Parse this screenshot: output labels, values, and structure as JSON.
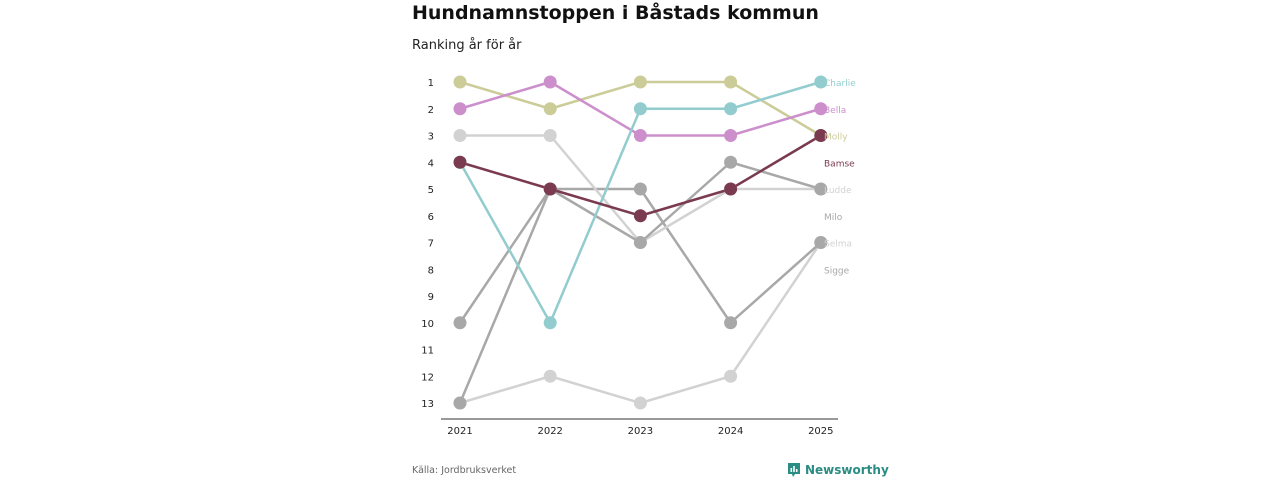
{
  "header": {
    "title": "Hundnamnstoppen i Båstads kommun",
    "subtitle": "Ranking år för år"
  },
  "footer": {
    "source": "Källa: Jordbruksverket",
    "brand": "Newsworthy",
    "brand_color": "#2a8c82"
  },
  "chart_data": {
    "type": "line",
    "subtype": "bump",
    "title": "Hundnamnstoppen i Båstads kommun",
    "subtitle": "Ranking år för år",
    "x": [
      "2021",
      "2022",
      "2023",
      "2024",
      "2025"
    ],
    "y_ticks": [
      1,
      2,
      3,
      4,
      5,
      6,
      7,
      8,
      9,
      10,
      11,
      12,
      13
    ],
    "ylim": [
      1,
      13
    ],
    "y_reversed": true,
    "xlabel": "",
    "ylabel": "",
    "series": [
      {
        "name": "Selma",
        "color": "#d2d2d2",
        "ranks": [
          13,
          12,
          13,
          12,
          7
        ]
      },
      {
        "name": "Sigge",
        "color": "#a8a8a8",
        "ranks": [
          13,
          5,
          5,
          10,
          7
        ]
      },
      {
        "name": "Ludde",
        "color": "#d2d2d2",
        "ranks": [
          3,
          3,
          7,
          5,
          5
        ]
      },
      {
        "name": "Milo",
        "color": "#a8a8a8",
        "ranks": [
          10,
          5,
          7,
          4,
          5
        ]
      },
      {
        "name": "Molly",
        "color": "#cccc99",
        "ranks": [
          1,
          2,
          1,
          1,
          3
        ]
      },
      {
        "name": "Bella",
        "color": "#cc8fcc",
        "ranks": [
          2,
          1,
          3,
          3,
          2
        ]
      },
      {
        "name": "Charlie",
        "color": "#92ccce",
        "ranks": [
          4,
          10,
          2,
          2,
          1
        ]
      },
      {
        "name": "Bamse",
        "color": "#7a3a50",
        "ranks": [
          4,
          5,
          6,
          5,
          3
        ]
      }
    ],
    "legend": "end-labels-right"
  }
}
